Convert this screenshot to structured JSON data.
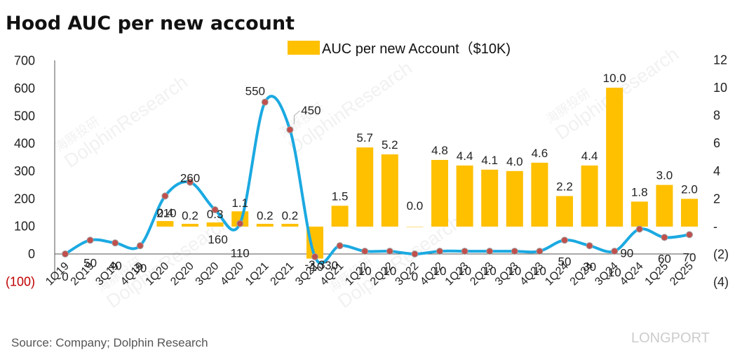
{
  "title": "Hood AUC per new account",
  "source": "Source: Company; Dolphin Research",
  "legend": {
    "bar_series": "AUC per new Account（$10K)"
  },
  "watermarks": {
    "brand_cn": "海豚投研",
    "brand_en": "DolphinResearch",
    "corner": "LONGPORT"
  },
  "colors": {
    "bar": "#FFC000",
    "line": "#1BA9E1",
    "marker": "#C0504D",
    "negative_tick": "#C00000"
  },
  "chart_data": {
    "type": "bar+line",
    "categories": [
      "1Q19",
      "2Q19",
      "3Q19",
      "4Q19",
      "1Q20",
      "2Q20",
      "3Q20",
      "4Q20",
      "1Q21",
      "2Q21",
      "3Q21",
      "4Q21",
      "1Q22",
      "2Q22",
      "3Q22",
      "4Q22",
      "1Q23",
      "2Q23",
      "3Q23",
      "4Q23",
      "1Q24",
      "2Q24",
      "3Q24",
      "4Q24",
      "1Q25",
      "2Q25"
    ],
    "bar_series": {
      "name": "AUC per new Account（$10K)",
      "axis": "right",
      "values": [
        null,
        null,
        null,
        null,
        0.4,
        0.2,
        0.3,
        1.1,
        0.2,
        0.2,
        -2.3,
        1.5,
        5.7,
        5.2,
        0.0,
        4.8,
        4.4,
        4.1,
        4.0,
        4.6,
        2.2,
        4.4,
        10.0,
        1.8,
        3.0,
        2.0
      ],
      "labels": [
        "",
        "",
        "",
        "",
        "0.4",
        "0.2",
        "0.3",
        "1.1",
        "0.2",
        "0.2",
        "-2.3",
        "1.5",
        "5.7",
        "5.2",
        "0.0",
        "4.8",
        "4.4",
        "4.1",
        "4.0",
        "4.6",
        "2.2",
        "4.4",
        "10.0",
        "1.8",
        "3.0",
        "2.0"
      ]
    },
    "line_series": {
      "axis": "left",
      "values": [
        0,
        50,
        40,
        30,
        210,
        260,
        160,
        110,
        550,
        450,
        -10,
        30,
        10,
        10,
        0,
        10,
        10,
        10,
        10,
        10,
        50,
        30,
        10,
        90,
        60,
        70
      ],
      "labels": [
        "0",
        "50",
        "40",
        "30",
        "210",
        "260",
        "160",
        "110",
        "550",
        "450",
        "-10",
        "30",
        "10",
        "10",
        "0",
        "10",
        "10",
        "10",
        "10",
        "10",
        "50",
        "30",
        "10",
        "90",
        "60",
        "70"
      ]
    },
    "left_axis": {
      "ylim": [
        -100,
        700
      ],
      "ticks": [
        -100,
        0,
        100,
        200,
        300,
        400,
        500,
        600,
        700
      ],
      "tick_labels": [
        "(100)",
        "0",
        "100",
        "200",
        "300",
        "400",
        "500",
        "600",
        "700"
      ]
    },
    "right_axis": {
      "ylim": [
        -4,
        12
      ],
      "ticks": [
        -4,
        -2,
        0,
        2,
        4,
        6,
        8,
        10,
        12
      ],
      "tick_labels": [
        "(4)",
        "(2)",
        "-",
        "2",
        "4",
        "6",
        "8",
        "10",
        "12"
      ]
    },
    "grid": false,
    "legend_position": "top-center"
  }
}
